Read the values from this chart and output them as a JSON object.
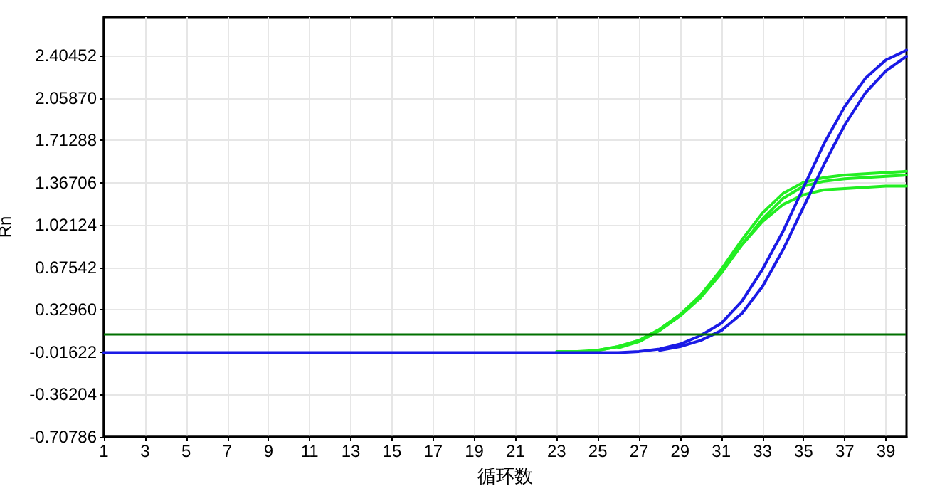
{
  "chart_data": {
    "type": "line",
    "xlabel": "循环数",
    "ylabel": "Rn",
    "x": [
      1,
      2,
      3,
      4,
      5,
      6,
      7,
      8,
      9,
      10,
      11,
      12,
      13,
      14,
      15,
      16,
      17,
      18,
      19,
      20,
      21,
      22,
      23,
      24,
      25,
      26,
      27,
      28,
      29,
      30,
      31,
      32,
      33,
      34,
      35,
      36,
      37,
      38,
      39,
      40
    ],
    "series": [
      {
        "color": "#22ee22",
        "values": [
          null,
          null,
          null,
          null,
          null,
          null,
          null,
          null,
          null,
          null,
          null,
          null,
          null,
          null,
          null,
          null,
          null,
          null,
          null,
          null,
          null,
          null,
          -0.01,
          -0.01,
          0.0,
          0.03,
          0.08,
          0.17,
          0.29,
          0.45,
          0.66,
          0.9,
          1.12,
          1.28,
          1.37,
          1.41,
          1.43,
          1.44,
          1.45,
          1.46
        ]
      },
      {
        "color": "#22ee22",
        "values": [
          null,
          null,
          null,
          null,
          null,
          null,
          null,
          null,
          null,
          null,
          null,
          null,
          null,
          null,
          null,
          null,
          null,
          null,
          null,
          null,
          null,
          null,
          null,
          null,
          null,
          0.02,
          0.07,
          0.16,
          0.28,
          0.43,
          0.63,
          0.86,
          1.07,
          1.24,
          1.34,
          1.38,
          1.4,
          1.41,
          1.42,
          1.43
        ]
      },
      {
        "color": "#22ee22",
        "values": [
          null,
          null,
          null,
          null,
          null,
          null,
          null,
          null,
          null,
          null,
          null,
          null,
          null,
          null,
          null,
          null,
          null,
          null,
          null,
          null,
          null,
          null,
          null,
          null,
          0.0,
          0.03,
          0.08,
          0.17,
          0.29,
          0.44,
          0.64,
          0.86,
          1.05,
          1.19,
          1.27,
          1.31,
          1.32,
          1.33,
          1.34,
          1.34
        ]
      },
      {
        "color": "#1a1ae6",
        "values": [
          -0.02,
          -0.02,
          -0.02,
          -0.02,
          -0.02,
          -0.02,
          -0.02,
          -0.02,
          -0.02,
          -0.02,
          -0.02,
          -0.02,
          -0.02,
          -0.02,
          -0.02,
          -0.02,
          -0.02,
          -0.02,
          -0.02,
          -0.02,
          -0.02,
          -0.02,
          -0.02,
          -0.02,
          -0.02,
          -0.02,
          -0.01,
          0.01,
          0.05,
          0.12,
          0.22,
          0.4,
          0.66,
          0.97,
          1.33,
          1.69,
          1.99,
          2.22,
          2.37,
          2.45
        ]
      },
      {
        "color": "#1a1ae6",
        "values": [
          null,
          null,
          null,
          null,
          null,
          null,
          null,
          null,
          null,
          null,
          null,
          null,
          null,
          null,
          null,
          null,
          null,
          null,
          null,
          null,
          null,
          null,
          null,
          null,
          null,
          null,
          null,
          0.0,
          0.03,
          0.08,
          0.16,
          0.3,
          0.52,
          0.82,
          1.17,
          1.52,
          1.84,
          2.1,
          2.28,
          2.4
        ]
      }
    ],
    "ref_lines": [
      {
        "axis": "y",
        "value": 0.13,
        "color": "#007000"
      }
    ],
    "xlim": [
      1,
      40
    ],
    "xticks": [
      1,
      3,
      5,
      7,
      9,
      11,
      13,
      15,
      17,
      19,
      21,
      23,
      25,
      27,
      29,
      31,
      33,
      35,
      37,
      39
    ],
    "ylim": [
      -0.70786,
      2.72
    ],
    "yticks": [
      -0.70786,
      -0.36204,
      -0.01622,
      {
        "value": 0.3296,
        "label": "0.32960"
      },
      0.67542,
      1.02124,
      1.36706,
      1.71288,
      {
        "value": 2.0587,
        "label": "2.05870"
      },
      2.40452
    ],
    "grid": true,
    "marker": "none",
    "line_style": "solid"
  }
}
